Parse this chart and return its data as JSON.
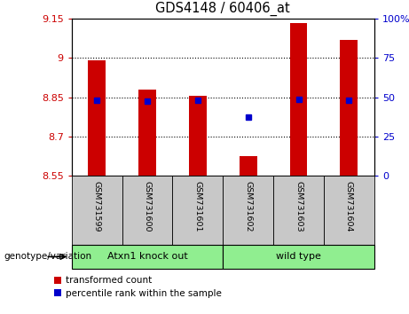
{
  "title": "GDS4148 / 60406_at",
  "samples": [
    "GSM731599",
    "GSM731600",
    "GSM731601",
    "GSM731602",
    "GSM731603",
    "GSM731604"
  ],
  "bar_bottoms": [
    8.55,
    8.55,
    8.55,
    8.55,
    8.55,
    8.55
  ],
  "bar_tops": [
    8.99,
    8.88,
    8.855,
    8.625,
    9.135,
    9.07
  ],
  "percentile_values": [
    8.838,
    8.835,
    8.838,
    8.775,
    8.842,
    8.838
  ],
  "ylim": [
    8.55,
    9.15
  ],
  "yticks": [
    8.55,
    8.7,
    8.85,
    9.0,
    9.15
  ],
  "ytick_labels": [
    "8.55",
    "8.7",
    "8.85",
    "9",
    "9.15"
  ],
  "y2ticks_pct": [
    0,
    25,
    50,
    75,
    100
  ],
  "y2tick_labels": [
    "0",
    "25",
    "50",
    "75",
    "100%"
  ],
  "bar_color": "#cc0000",
  "dot_color": "#0000cc",
  "bar_width": 0.35,
  "group1_label": "Atxn1 knock out",
  "group2_label": "wild type",
  "group_color": "#90ee90",
  "group_label_text": "genotype/variation",
  "legend_label1": "transformed count",
  "legend_label2": "percentile rank within the sample",
  "grid_yticks": [
    8.7,
    8.85,
    9.0
  ],
  "tick_color_left": "#cc0000",
  "tick_color_right": "#0000cc",
  "sample_box_color": "#c8c8c8",
  "fig_w": 4.61,
  "fig_h": 3.54
}
